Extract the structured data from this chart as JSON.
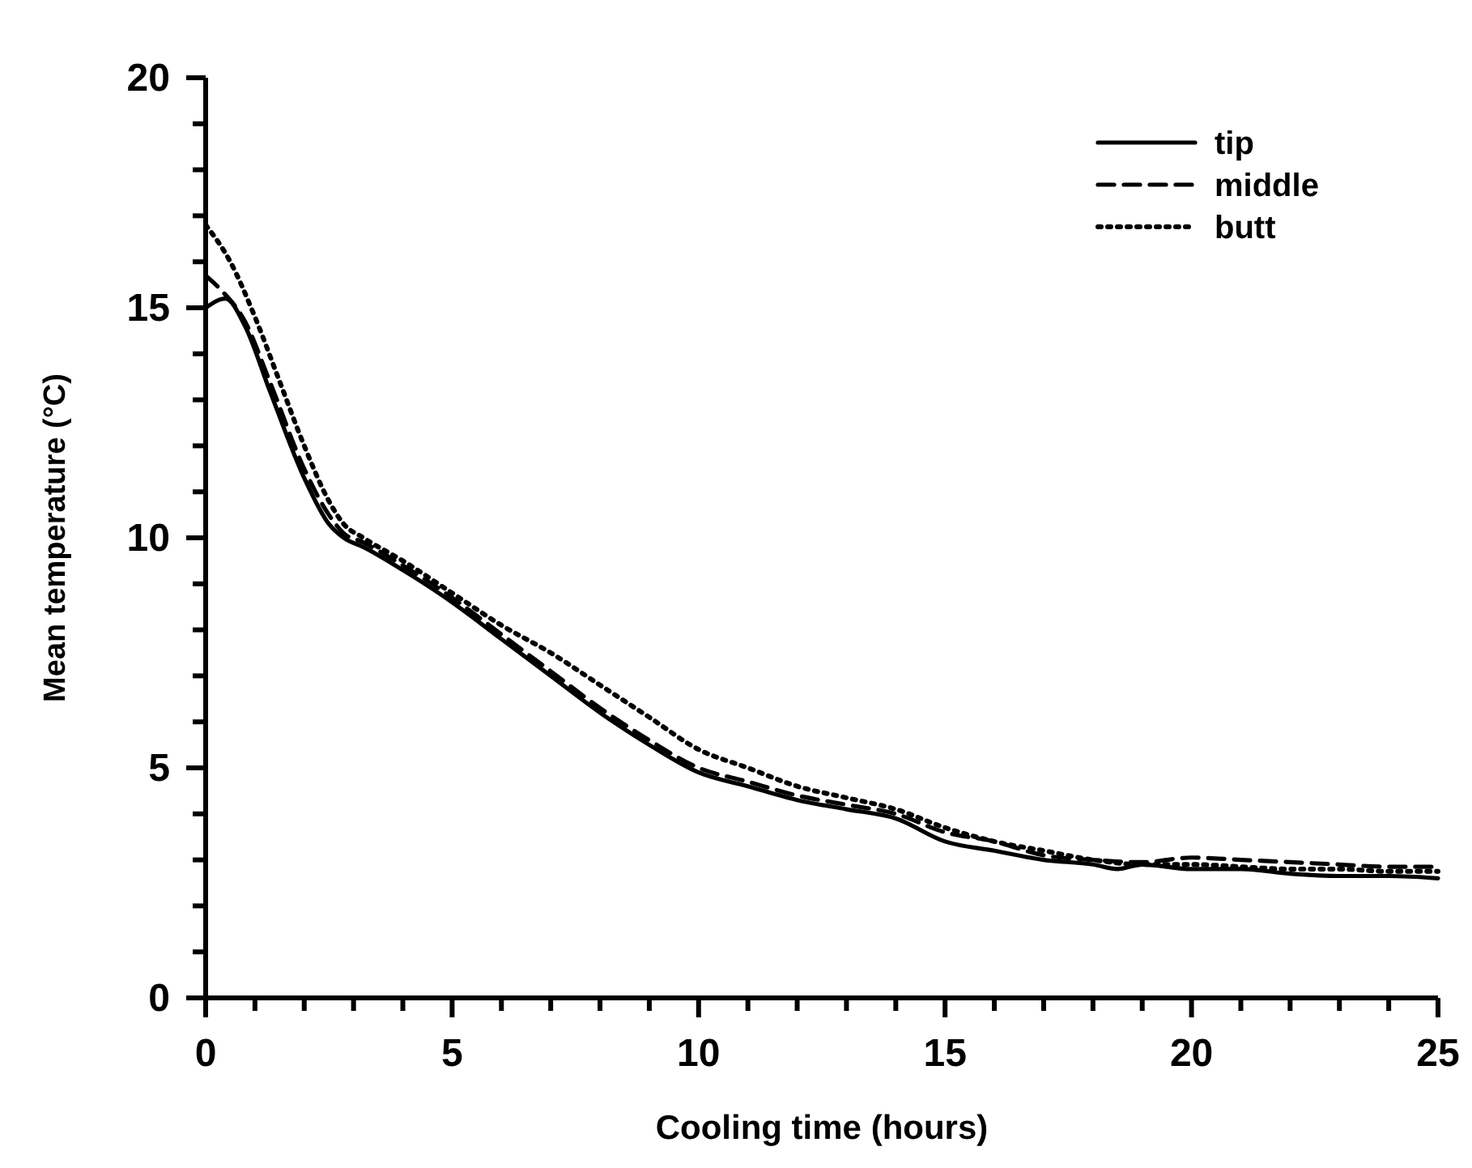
{
  "chart_data": {
    "type": "line",
    "xlabel": "Cooling time (hours)",
    "ylabel": "Mean temperature (°C)",
    "xlim": [
      0,
      25
    ],
    "ylim": [
      0,
      20
    ],
    "xticks": [
      0,
      {
        "value": 1,
        "label": null
      },
      {
        "value": 2,
        "label": null
      },
      {
        "value": 3,
        "label": null
      },
      {
        "value": 4,
        "label": null
      },
      5,
      {
        "value": 6,
        "label": null
      },
      {
        "value": 7,
        "label": null
      },
      {
        "value": 8,
        "label": null
      },
      {
        "value": 9,
        "label": null
      },
      10,
      {
        "value": 11,
        "label": null
      },
      {
        "value": 12,
        "label": null
      },
      {
        "value": 13,
        "label": null
      },
      {
        "value": 14,
        "label": null
      },
      15,
      {
        "value": 16,
        "label": null
      },
      {
        "value": 17,
        "label": null
      },
      {
        "value": 18,
        "label": null
      },
      {
        "value": 19,
        "label": null
      },
      20,
      {
        "value": 21,
        "label": null
      },
      {
        "value": 22,
        "label": null
      },
      {
        "value": 23,
        "label": null
      },
      {
        "value": 24,
        "label": null
      },
      25
    ],
    "yticks": [
      0,
      {
        "value": 1,
        "label": null
      },
      {
        "value": 2,
        "label": null
      },
      {
        "value": 3,
        "label": null
      },
      {
        "value": 4,
        "label": null
      },
      5,
      {
        "value": 6,
        "label": null
      },
      {
        "value": 7,
        "label": null
      },
      {
        "value": 8,
        "label": null
      },
      {
        "value": 9,
        "label": null
      },
      10,
      {
        "value": 11,
        "label": null
      },
      {
        "value": 12,
        "label": null
      },
      {
        "value": 13,
        "label": null
      },
      {
        "value": 14,
        "label": null
      },
      15,
      {
        "value": 16,
        "label": null
      },
      {
        "value": 17,
        "label": null
      },
      {
        "value": 18,
        "label": null
      },
      {
        "value": 19,
        "label": null
      },
      20
    ],
    "legend": "top right",
    "grid": false,
    "series": [
      {
        "name": "tip",
        "color": "#000000",
        "line_style": "solid",
        "x": [
          0,
          0.4,
          0.8,
          1.3,
          2.0,
          2.5,
          2.8,
          3.2,
          4,
          5,
          6,
          7,
          8,
          9,
          10,
          11,
          12,
          13,
          14,
          15,
          16,
          17,
          18,
          18.5,
          19,
          20,
          21,
          22,
          23,
          24,
          25
        ],
        "values": [
          15.0,
          15.2,
          14.6,
          13.2,
          11.3,
          10.3,
          10.0,
          9.8,
          9.3,
          8.6,
          7.8,
          7.0,
          6.2,
          5.5,
          4.9,
          4.6,
          4.3,
          4.1,
          3.9,
          3.4,
          3.2,
          3.0,
          2.9,
          2.8,
          2.9,
          2.8,
          2.8,
          2.7,
          2.65,
          2.65,
          2.6
        ]
      },
      {
        "name": "middle",
        "color": "#000000",
        "line_style": "dashed",
        "x": [
          0,
          0.3,
          0.8,
          1.3,
          2.0,
          2.5,
          2.8,
          3.2,
          4,
          5,
          6,
          7,
          8,
          9,
          10,
          11,
          12,
          13,
          14,
          15,
          16,
          17,
          18,
          19,
          20,
          21,
          22,
          23,
          24,
          25
        ],
        "values": [
          15.7,
          15.4,
          14.7,
          13.4,
          11.5,
          10.5,
          10.1,
          9.9,
          9.4,
          8.7,
          7.9,
          7.1,
          6.3,
          5.6,
          5.0,
          4.7,
          4.4,
          4.2,
          4.0,
          3.6,
          3.4,
          3.1,
          3.0,
          2.95,
          3.05,
          3.0,
          2.95,
          2.9,
          2.85,
          2.85
        ]
      },
      {
        "name": "butt",
        "color": "#000000",
        "line_style": "dotted",
        "x": [
          0,
          0.5,
          1.0,
          1.5,
          2.0,
          2.5,
          2.8,
          3.2,
          4,
          5,
          6,
          7,
          8,
          9,
          10,
          11,
          12,
          13,
          14,
          15,
          16,
          17,
          18,
          19,
          20,
          21,
          22,
          23,
          24,
          25
        ],
        "values": [
          16.8,
          16.0,
          14.8,
          13.4,
          12.0,
          10.8,
          10.3,
          10.0,
          9.5,
          8.8,
          8.1,
          7.5,
          6.8,
          6.1,
          5.4,
          5.0,
          4.6,
          4.35,
          4.1,
          3.7,
          3.4,
          3.2,
          3.0,
          2.9,
          2.9,
          2.85,
          2.8,
          2.8,
          2.75,
          2.75
        ]
      }
    ]
  }
}
